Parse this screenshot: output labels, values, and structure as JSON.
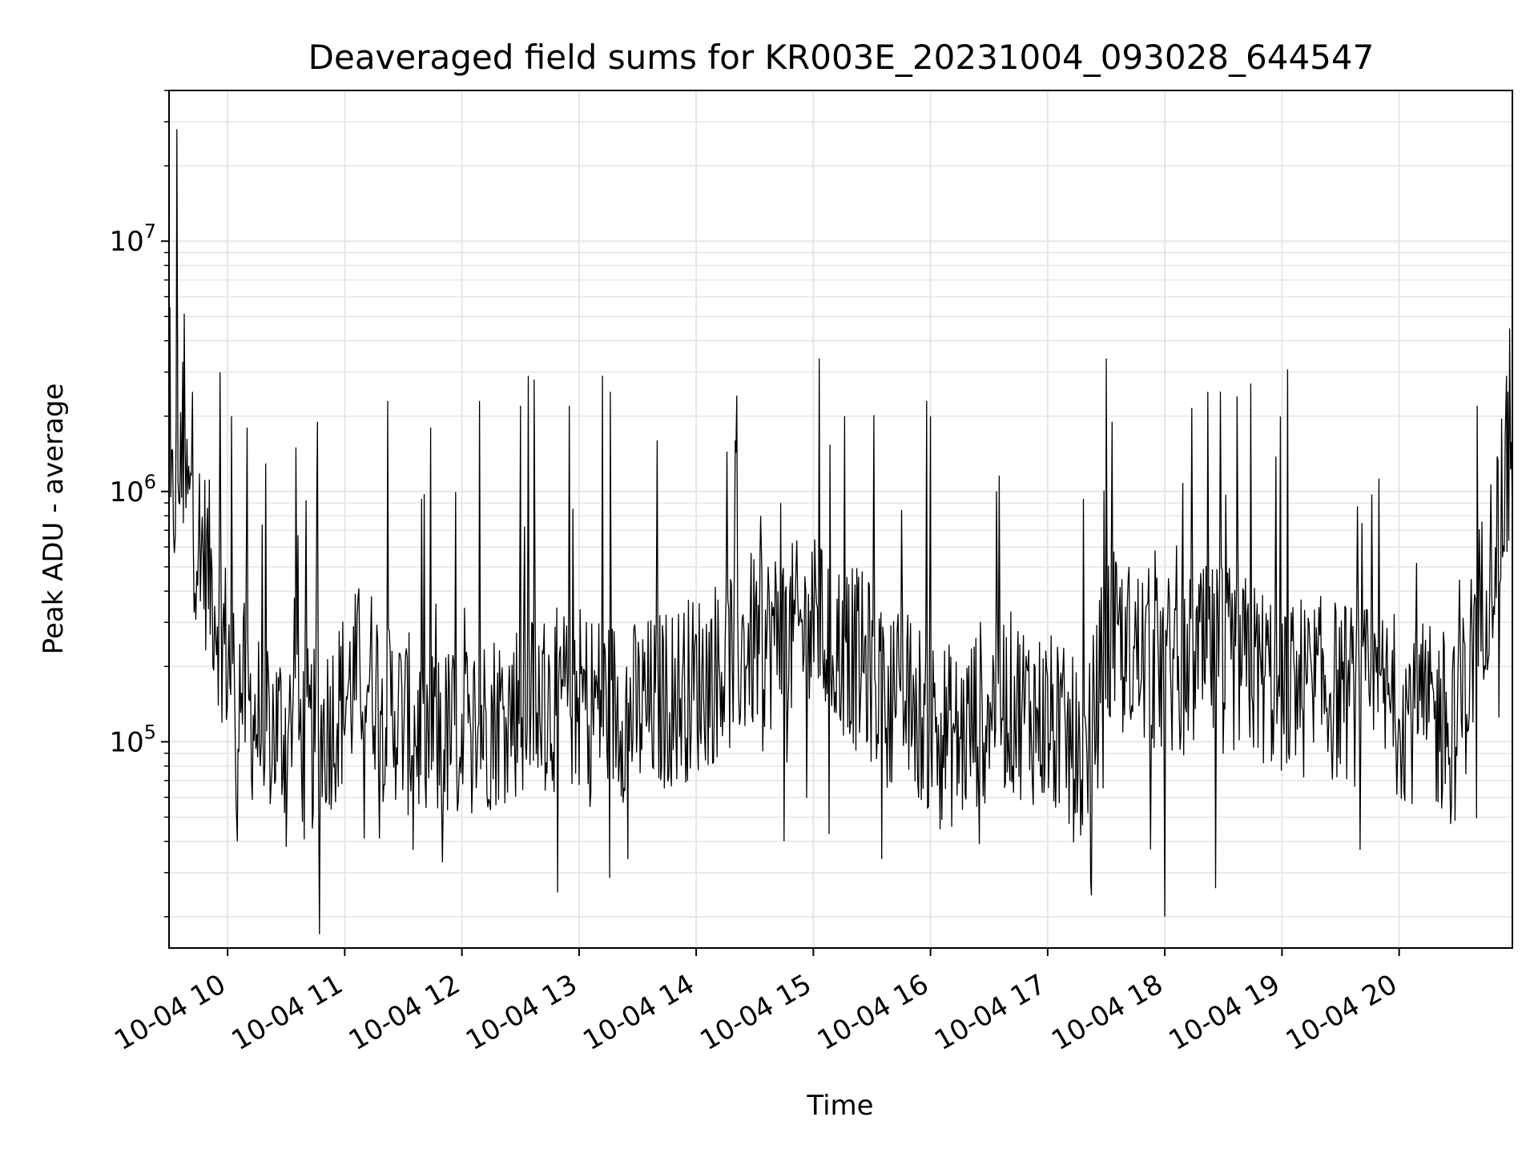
{
  "chart_data": {
    "type": "line",
    "title": "Deaveraged field sums for KR003E_20231004_093028_644547",
    "xlabel": "Time",
    "ylabel": "Peak ADU - average",
    "yscale": "log",
    "grid": true,
    "line_color": "#000000",
    "grid_color": "#e6e6e6",
    "xlim": [
      "2023-10-04 09:30",
      "2023-10-04 20:58"
    ],
    "ylim": [
      15000,
      40000000
    ],
    "x_tick_labels": [
      "10-04 10",
      "10-04 11",
      "10-04 12",
      "10-04 13",
      "10-04 14",
      "10-04 15",
      "10-04 16",
      "10-04 17",
      "10-04 18",
      "10-04 19",
      "10-04 20"
    ],
    "x_tick_times": [
      "2023-10-04 10:00",
      "2023-10-04 11:00",
      "2023-10-04 12:00",
      "2023-10-04 13:00",
      "2023-10-04 14:00",
      "2023-10-04 15:00",
      "2023-10-04 16:00",
      "2023-10-04 17:00",
      "2023-10-04 18:00",
      "2023-10-04 19:00",
      "2023-10-04 20:00"
    ],
    "y_ticks": [
      {
        "value": 100000,
        "base": "10",
        "exp": "5"
      },
      {
        "value": 1000000,
        "base": "10",
        "exp": "6"
      },
      {
        "value": 10000000,
        "base": "10",
        "exp": "7"
      }
    ],
    "series": [
      {
        "baseline": {
          "x": [
            "2023-10-04 09:30",
            "2023-10-04 09:34",
            "2023-10-04 09:40",
            "2023-10-04 09:50",
            "2023-10-04 10:00",
            "2023-10-04 10:15",
            "2023-10-04 10:30",
            "2023-10-04 10:45",
            "2023-10-04 11:00",
            "2023-10-04 11:10",
            "2023-10-04 11:30",
            "2023-10-04 11:45",
            "2023-10-04 12:00",
            "2023-10-04 12:30",
            "2023-10-04 13:00",
            "2023-10-04 13:30",
            "2023-10-04 14:00",
            "2023-10-04 14:30",
            "2023-10-04 15:00",
            "2023-10-04 15:20",
            "2023-10-04 15:45",
            "2023-10-04 16:00",
            "2023-10-04 16:15",
            "2023-10-04 16:30",
            "2023-10-04 16:45",
            "2023-10-04 17:00",
            "2023-10-04 17:20",
            "2023-10-04 17:30",
            "2023-10-04 18:00",
            "2023-10-04 18:30",
            "2023-10-04 19:00",
            "2023-10-04 19:30",
            "2023-10-04 20:00",
            "2023-10-04 20:30",
            "2023-10-04 20:40",
            "2023-10-04 20:58"
          ],
          "y": [
            600000,
            1200000,
            900000,
            500000,
            220000,
            120000,
            110000,
            100000,
            150000,
            200000,
            120000,
            100000,
            110000,
            140000,
            150000,
            130000,
            170000,
            250000,
            280000,
            220000,
            150000,
            120000,
            100000,
            150000,
            140000,
            120000,
            80000,
            250000,
            200000,
            220000,
            170000,
            160000,
            140000,
            110000,
            300000,
            1300000
          ]
        },
        "spikes_up": {
          "x": [
            "2023-10-04 09:34",
            "2023-10-04 09:37",
            "2023-10-04 09:42",
            "2023-10-04 10:02",
            "2023-10-04 10:10",
            "2023-10-04 10:35",
            "2023-10-04 10:46",
            "2023-10-04 11:22",
            "2023-10-04 11:44",
            "2023-10-04 12:09",
            "2023-10-04 12:30",
            "2023-10-04 12:34",
            "2023-10-04 12:37",
            "2023-10-04 12:55",
            "2023-10-04 13:12",
            "2023-10-04 13:16",
            "2023-10-04 13:40",
            "2023-10-04 14:20",
            "2023-10-04 14:33",
            "2023-10-04 15:03",
            "2023-10-04 15:16",
            "2023-10-04 15:58",
            "2023-10-04 16:00",
            "2023-10-04 17:30",
            "2023-10-04 17:33",
            "2023-10-04 18:22",
            "2023-10-04 18:37",
            "2023-10-04 18:44",
            "2023-10-04 20:40",
            "2023-10-04 20:55"
          ],
          "y": [
            28000000,
            3300000,
            2500000,
            2000000,
            1800000,
            1500000,
            1900000,
            2300000,
            1800000,
            2300000,
            2200000,
            2900000,
            2800000,
            2200000,
            2900000,
            2500000,
            1600000,
            1600000,
            800000,
            3400000,
            2000000,
            2300000,
            2000000,
            3400000,
            1900000,
            2500000,
            2400000,
            2700000,
            2200000,
            2900000
          ]
        },
        "spikes_down": {
          "x": [
            "2023-10-04 10:05",
            "2023-10-04 10:30",
            "2023-10-04 11:35",
            "2023-10-04 11:50",
            "2023-10-04 12:49",
            "2023-10-04 13:25",
            "2023-10-04 14:45",
            "2023-10-04 15:35",
            "2023-10-04 16:25",
            "2023-10-04 17:22",
            "2023-10-04 18:00",
            "2023-10-04 18:26",
            "2023-10-04 19:40"
          ],
          "y": [
            40000,
            38000,
            37000,
            33000,
            25000,
            34000,
            40000,
            34000,
            39000,
            28000,
            20000,
            26000,
            37000
          ]
        }
      }
    ]
  }
}
